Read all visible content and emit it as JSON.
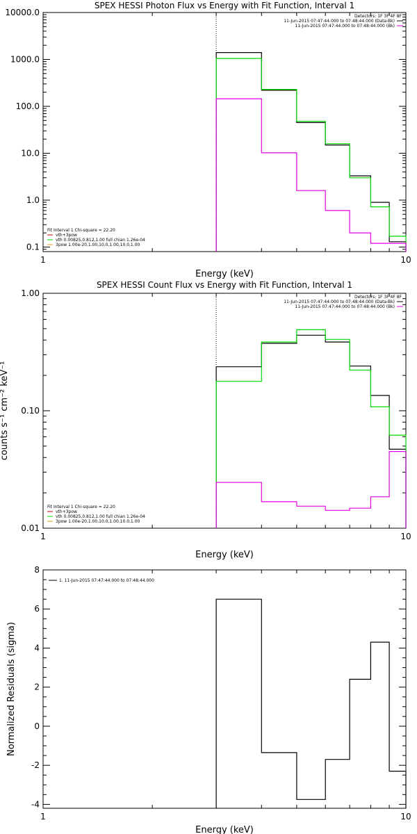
{
  "colors": {
    "black": "#000000",
    "green": "#00d800",
    "magenta": "#e000e0",
    "orange": "#e0a000",
    "red": "#d00000"
  },
  "chart_data": [
    {
      "type": "line",
      "title": "SPEX HESSI Photon Flux vs Energy with Fit Function, Interval 1",
      "xlabel": "Energy (keV)",
      "ylabel": "",
      "xscale": "log",
      "yscale": "log",
      "xlim": [
        1,
        10
      ],
      "ylim": [
        0.08,
        10000
      ],
      "xticks": [
        {
          "v": 1,
          "label": "1"
        },
        {
          "v": 10,
          "label": "10"
        }
      ],
      "yticks": [
        {
          "v": 10000,
          "label": "10000.0"
        },
        {
          "v": 1000,
          "label": "1000.0"
        },
        {
          "v": 100,
          "label": "100.0"
        },
        {
          "v": 10,
          "label": "10.0"
        },
        {
          "v": 1,
          "label": "1.0"
        },
        {
          "v": 0.1,
          "label": "0.1"
        }
      ],
      "vline": 3,
      "legend_tr": {
        "lines": [
          "Detectors: 1F 3F 4F 8F",
          "11-Jun-2015 07:47:44.000 to 07:48:44.000 (Data-Bk)",
          "11-Jun-2015 07:47:44.000 to 07:48:44.000 (Bk)"
        ],
        "colors": [
          "",
          "#000000",
          "#e000e0"
        ]
      },
      "legend_bl": {
        "lines": [
          "Fit Interval  1    Chi-square = 22.20",
          "vth+3pow",
          "vth 0.00825,0.812,1.00   full chian 1.26e-04",
          "3pow 1.00e-20,1.00,10.0,1.00,10.0,1.00"
        ],
        "colors": [
          "",
          "#d00000",
          "#00d800",
          "#e0a000"
        ]
      },
      "series": [
        {
          "color": "#000000",
          "edges": [
            3,
            4,
            5,
            6,
            7,
            8,
            9,
            10
          ],
          "values": [
            1400,
            220,
            45,
            15,
            3.3,
            0.9,
            0.13
          ]
        },
        {
          "color": "#00d800",
          "edges": [
            3,
            4,
            5,
            6,
            7,
            8,
            9,
            10
          ],
          "values": [
            1050,
            230,
            48,
            16,
            3.0,
            0.72,
            0.17
          ]
        },
        {
          "color": "#e000e0",
          "edges": [
            3,
            4,
            5,
            6,
            7,
            8,
            9,
            10
          ],
          "values": [
            145,
            10.2,
            1.6,
            0.6,
            0.2,
            0.12,
            0.12
          ]
        }
      ]
    },
    {
      "type": "line",
      "title": "SPEX HESSI Count Flux vs Energy with Fit Function, Interval 1",
      "xlabel": "Energy (keV)",
      "ylabel": "counts s⁻¹ cm⁻² keV⁻¹",
      "xscale": "log",
      "yscale": "log",
      "xlim": [
        1,
        10
      ],
      "ylim": [
        0.01,
        1.0
      ],
      "xticks": [
        {
          "v": 1,
          "label": "1"
        },
        {
          "v": 10,
          "label": "10"
        }
      ],
      "yticks": [
        {
          "v": 1.0,
          "label": "1.00"
        },
        {
          "v": 0.1,
          "label": "0.10"
        },
        {
          "v": 0.01,
          "label": "0.01"
        }
      ],
      "vline": 3,
      "legend_tr": {
        "lines": [
          "Detectors: 1F 3F 4F 8F",
          "11-Jun-2015 07:47:44.000 to 07:48:44.000 (Data-Bk)",
          "11-Jun-2015 07:47:44.000 to 07:48:44.000 (Bk)"
        ],
        "colors": [
          "",
          "#000000",
          "#e000e0"
        ]
      },
      "legend_bl": {
        "lines": [
          "Fit Interval  1    Chi-square = 22.20",
          "vth+3pow",
          "vth 0.00825,0.812,1.00   full chian 1.26e-04",
          "3pow 1.00e-20,1.00,10.0,1.00,10.0,1.00"
        ],
        "colors": [
          "",
          "#d00000",
          "#00d800",
          "#e0a000"
        ]
      },
      "series": [
        {
          "color": "#000000",
          "edges": [
            3,
            4,
            5,
            6,
            7,
            8,
            9,
            10
          ],
          "values": [
            0.237,
            0.375,
            0.44,
            0.385,
            0.24,
            0.135,
            0.047
          ]
        },
        {
          "color": "#00d800",
          "edges": [
            3,
            4,
            5,
            6,
            7,
            8,
            9,
            10
          ],
          "values": [
            0.178,
            0.385,
            0.49,
            0.405,
            0.222,
            0.108,
            0.062
          ]
        },
        {
          "color": "#e000e0",
          "edges": [
            3,
            4,
            5,
            6,
            7,
            8,
            9,
            10
          ],
          "values": [
            0.0245,
            0.0168,
            0.0154,
            0.0142,
            0.0148,
            0.0185,
            0.045
          ]
        }
      ]
    },
    {
      "type": "line",
      "title": "",
      "xlabel": "Energy (keV)",
      "ylabel": "Normalized Residuals (sigma)",
      "xscale": "log",
      "yscale": "linear",
      "xlim": [
        1,
        10
      ],
      "ylim": [
        -4.2,
        8
      ],
      "xticks": [
        {
          "v": 1,
          "label": "1"
        },
        {
          "v": 10,
          "label": "10"
        }
      ],
      "yticks": [
        {
          "v": 8,
          "label": "8"
        },
        {
          "v": 6,
          "label": "6"
        },
        {
          "v": 4,
          "label": "4"
        },
        {
          "v": 2,
          "label": "2"
        },
        {
          "v": 0,
          "label": "0"
        },
        {
          "v": -2,
          "label": "-2"
        },
        {
          "v": -4,
          "label": "-4"
        }
      ],
      "legend_tl": {
        "lines": [
          "1. 11-Jun-2015 07:47:44.000 to 07:48:44.000"
        ],
        "colors": [
          "#000000"
        ]
      },
      "series": [
        {
          "color": "#000000",
          "edges": [
            3,
            4,
            5,
            6,
            7,
            8,
            9,
            10
          ],
          "values": [
            6.5,
            -1.35,
            -3.75,
            -1.7,
            2.4,
            4.3,
            -2.3
          ]
        }
      ]
    }
  ]
}
